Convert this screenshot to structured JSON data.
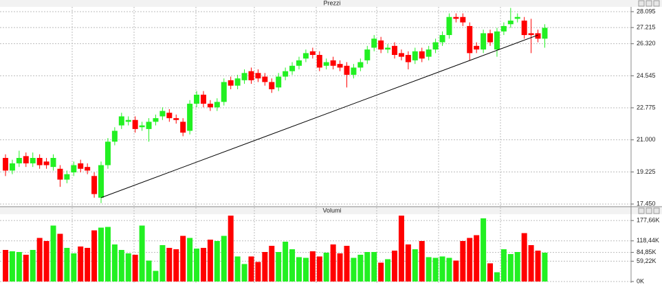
{
  "chart_data": [
    {
      "type": "candlestick",
      "title": "Prezzi",
      "open": [
        20.0,
        19.3,
        19.7,
        20.1,
        19.7,
        20.0,
        19.8,
        19.5,
        19.4,
        18.8,
        19.2,
        19.7,
        19.5,
        19.0,
        17.8,
        19.6,
        20.9,
        21.8,
        22.0,
        22.1,
        21.7,
        21.6,
        22.0,
        22.3,
        22.5,
        22.2,
        22.0,
        21.5,
        23.0,
        23.5,
        23.0,
        22.8,
        23.1,
        24.3,
        24.0,
        24.3,
        24.8,
        24.7,
        24.5,
        24.2,
        23.9,
        24.5,
        24.8,
        25.1,
        25.5,
        25.9,
        25.7,
        25.1,
        25.4,
        25.2,
        25.1,
        24.6,
        25.0,
        25.4,
        26.1,
        26.5,
        26.0,
        26.2,
        25.8,
        25.7,
        25.4,
        25.9,
        25.6,
        26.0,
        26.4,
        26.8,
        27.8,
        27.8,
        27.3,
        26.2,
        26.0,
        26.9,
        26.0,
        27.0,
        27.4,
        27.7,
        27.6,
        26.9,
        26.9,
        26.6
      ],
      "high": [
        20.2,
        19.9,
        20.4,
        20.3,
        20.3,
        20.2,
        20.0,
        20.2,
        19.6,
        19.3,
        19.8,
        19.9,
        19.7,
        19.2,
        19.8,
        21.1,
        21.7,
        22.5,
        22.3,
        22.3,
        22.0,
        22.2,
        22.4,
        22.8,
        22.7,
        22.4,
        22.2,
        23.2,
        23.7,
        23.7,
        23.2,
        23.3,
        24.4,
        24.5,
        24.6,
        24.9,
        25.0,
        24.9,
        24.7,
        24.4,
        24.7,
        25.0,
        25.3,
        25.6,
        26.0,
        26.1,
        25.9,
        25.5,
        25.6,
        25.4,
        25.3,
        25.2,
        25.5,
        26.2,
        26.8,
        26.7,
        26.3,
        26.4,
        26.0,
        25.9,
        26.1,
        26.1,
        26.2,
        26.6,
        27.0,
        28.0,
        28.0,
        28.0,
        27.5,
        26.4,
        27.1,
        27.1,
        27.2,
        27.5,
        28.3,
        28.0,
        27.8,
        27.7,
        27.1,
        27.4
      ],
      "low": [
        19.0,
        19.1,
        19.5,
        19.5,
        19.5,
        19.4,
        19.4,
        19.3,
        18.4,
        18.6,
        19.0,
        19.2,
        19.1,
        17.8,
        17.5,
        19.4,
        20.7,
        21.6,
        21.8,
        21.4,
        21.5,
        20.9,
        21.8,
        22.1,
        22.0,
        21.9,
        21.2,
        21.3,
        22.8,
        22.8,
        22.6,
        22.6,
        22.9,
        23.8,
        23.8,
        24.1,
        24.1,
        24.2,
        24.0,
        23.6,
        23.7,
        24.3,
        24.6,
        24.9,
        25.3,
        25.5,
        24.8,
        24.9,
        24.9,
        24.8,
        23.9,
        24.4,
        24.8,
        25.2,
        25.9,
        25.8,
        25.8,
        25.5,
        25.4,
        24.9,
        25.2,
        25.3,
        25.4,
        25.8,
        26.2,
        26.6,
        27.5,
        27.3,
        25.4,
        25.8,
        25.8,
        26.2,
        25.6,
        26.8,
        27.2,
        27.5,
        26.6,
        25.8,
        26.4,
        26.1
      ],
      "close": [
        19.3,
        19.7,
        20.0,
        19.7,
        20.0,
        19.6,
        19.6,
        20.0,
        18.8,
        19.1,
        19.6,
        19.4,
        19.3,
        18.0,
        19.6,
        20.9,
        21.5,
        22.3,
        22.1,
        21.6,
        21.8,
        22.0,
        22.2,
        22.6,
        22.2,
        22.1,
        21.4,
        23.0,
        23.5,
        23.0,
        22.8,
        23.1,
        24.2,
        24.0,
        24.4,
        24.7,
        24.3,
        24.4,
        24.2,
        23.8,
        24.5,
        24.8,
        25.1,
        25.4,
        25.8,
        25.7,
        25.0,
        25.3,
        25.1,
        25.0,
        24.6,
        25.0,
        25.3,
        26.0,
        26.6,
        26.0,
        26.1,
        25.7,
        25.6,
        25.3,
        25.9,
        25.5,
        26.0,
        26.4,
        26.8,
        27.8,
        27.7,
        27.5,
        25.8,
        26.0,
        26.9,
        26.4,
        27.0,
        27.3,
        27.6,
        27.8,
        26.8,
        26.8,
        26.6,
        27.2
      ],
      "up_color": "#22f022",
      "down_color": "#ff0000",
      "trendline": {
        "x": [
          14,
          78
        ],
        "y": [
          17.8,
          26.8
        ],
        "color": "#000000"
      },
      "ylim": [
        17.34,
        28.36
      ],
      "yticks": [
        {
          "value": 17.45,
          "label": "17.450"
        },
        19.225,
        {
          "value": 21,
          "label": "21.000"
        },
        22.775,
        24.545,
        {
          "value": 26.32,
          "label": "26.320"
        },
        27.215,
        28.095
      ],
      "grid": true
    },
    {
      "type": "bar",
      "title": "Volumi",
      "values": [
        92,
        88,
        86,
        78,
        92,
        127,
        118,
        163,
        139,
        98,
        82,
        102,
        98,
        149,
        157,
        159,
        108,
        92,
        82,
        78,
        163,
        61,
        31,
        106,
        98,
        94,
        133,
        127,
        96,
        98,
        122,
        118,
        133,
        192,
        73,
        51,
        73,
        57,
        86,
        104,
        86,
        116,
        94,
        71,
        69,
        88,
        73,
        84,
        108,
        82,
        104,
        69,
        78,
        86,
        86,
        55,
        65,
        90,
        192,
        108,
        94,
        118,
        71,
        69,
        73,
        69,
        61,
        118,
        127,
        135,
        184,
        53,
        27,
        94,
        80,
        86,
        141,
        106,
        90,
        84
      ],
      "ylim": [
        0,
        196
      ],
      "yticks": [
        {
          "value": 0,
          "label": "0K"
        },
        {
          "value": 59.22,
          "label": "59,22K"
        },
        {
          "value": 84.85,
          "label": "84,85K"
        },
        {
          "value": 118.44,
          "label": "118,44K"
        },
        {
          "value": 177.66,
          "label": "177,66K"
        }
      ],
      "grid": true
    }
  ]
}
